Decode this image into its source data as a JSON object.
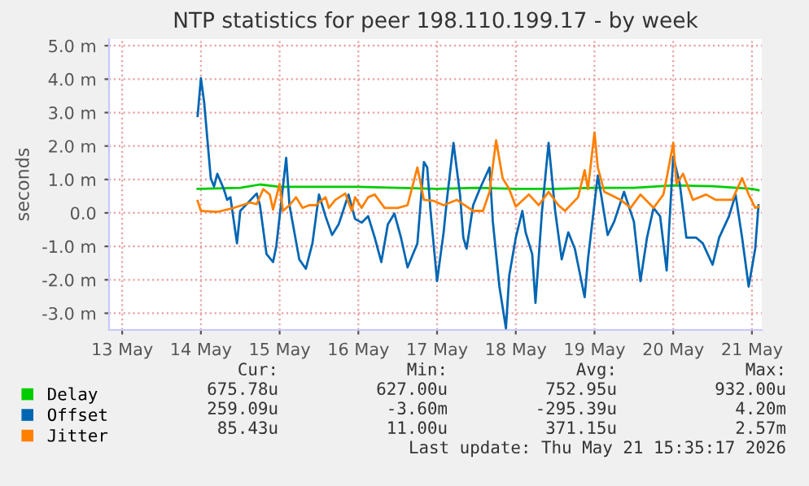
{
  "chart_data": {
    "type": "line",
    "title": "NTP statistics for peer 198.110.199.17 - by week",
    "ylabel": "seconds",
    "xlim": [
      "2026-05-12T20:00",
      "2026-05-21T03:00"
    ],
    "xticks": [
      {
        "value": "2026-05-13",
        "label": "13 May"
      },
      {
        "value": "2026-05-14",
        "label": "14 May"
      },
      {
        "value": "2026-05-15",
        "label": "15 May"
      },
      {
        "value": "2026-05-16",
        "label": "16 May"
      },
      {
        "value": "2026-05-17",
        "label": "17 May"
      },
      {
        "value": "2026-05-18",
        "label": "18 May"
      },
      {
        "value": "2026-05-19",
        "label": "19 May"
      },
      {
        "value": "2026-05-20",
        "label": "20 May"
      },
      {
        "value": "2026-05-21",
        "label": "21 May"
      }
    ],
    "ylim": [
      -3.5,
      5.2
    ],
    "yticks": [
      {
        "value": -3,
        "label": "-3.0 m"
      },
      {
        "value": -2,
        "label": "-2.0 m"
      },
      {
        "value": -1,
        "label": "-1.0 m"
      },
      {
        "value": 0,
        "label": "0.0"
      },
      {
        "value": 1,
        "label": "1.0 m"
      },
      {
        "value": 2,
        "label": "2.0 m"
      },
      {
        "value": 3,
        "label": "3.0 m"
      },
      {
        "value": 4,
        "label": "4.0 m"
      },
      {
        "value": 5,
        "label": "5.0 m"
      }
    ],
    "grid": true,
    "legend": "bottom left",
    "line_style": "solid",
    "marker": "none",
    "series": [
      {
        "name": "Delay",
        "color": "#00cc00",
        "x": [
          "2026-05-13T23:00",
          "2026-05-14T12:00",
          "2026-05-14T18:00",
          "2026-05-15T00:00",
          "2026-05-15T12:00",
          "2026-05-16T00:00",
          "2026-05-16T12:00",
          "2026-05-17T00:00",
          "2026-05-17T12:00",
          "2026-05-18T00:00",
          "2026-05-18T12:00",
          "2026-05-19T00:00",
          "2026-05-19T12:00",
          "2026-05-20T00:00",
          "2026-05-20T12:00",
          "2026-05-21T00:00",
          "2026-05-21T02:00"
        ],
        "values": [
          0.72,
          0.75,
          0.85,
          0.78,
          0.78,
          0.78,
          0.75,
          0.72,
          0.75,
          0.72,
          0.72,
          0.75,
          0.75,
          0.82,
          0.8,
          0.72,
          0.68
        ]
      },
      {
        "name": "Offset",
        "color": "#0066b3",
        "x": [
          "2026-05-13T23:00",
          "2026-05-14T00:00",
          "2026-05-14T01:00",
          "2026-05-14T02:00",
          "2026-05-14T03:00",
          "2026-05-14T04:00",
          "2026-05-14T05:00",
          "2026-05-14T07:00",
          "2026-05-14T08:00",
          "2026-05-14T09:00",
          "2026-05-14T11:00",
          "2026-05-14T12:00",
          "2026-05-14T17:00",
          "2026-05-14T18:00",
          "2026-05-14T20:00",
          "2026-05-14T22:00",
          "2026-05-14T23:00",
          "2026-05-15T02:00",
          "2026-05-15T03:00",
          "2026-05-15T06:00",
          "2026-05-15T08:00",
          "2026-05-15T10:00",
          "2026-05-15T12:00",
          "2026-05-15T14:00",
          "2026-05-15T16:00",
          "2026-05-15T18:00",
          "2026-05-15T21:00",
          "2026-05-15T23:00",
          "2026-05-16T01:00",
          "2026-05-16T03:00",
          "2026-05-16T05:00",
          "2026-05-16T07:00",
          "2026-05-16T09:00",
          "2026-05-16T11:00",
          "2026-05-16T13:00",
          "2026-05-16T15:00",
          "2026-05-16T18:00",
          "2026-05-16T20:00",
          "2026-05-16T21:00",
          "2026-05-16T22:00",
          "2026-05-17T00:00",
          "2026-05-17T02:00",
          "2026-05-17T03:00",
          "2026-05-17T05:00",
          "2026-05-17T07:00",
          "2026-05-17T08:00",
          "2026-05-17T09:00",
          "2026-05-17T11:00",
          "2026-05-17T13:00",
          "2026-05-17T16:00",
          "2026-05-17T17:00",
          "2026-05-17T19:00",
          "2026-05-17T21:00",
          "2026-05-17T22:00",
          "2026-05-18T00:00",
          "2026-05-18T02:00",
          "2026-05-18T03:00",
          "2026-05-18T05:00",
          "2026-05-18T06:00",
          "2026-05-18T08:00",
          "2026-05-18T10:00",
          "2026-05-18T12:00",
          "2026-05-18T14:00",
          "2026-05-18T16:00",
          "2026-05-18T18:00",
          "2026-05-18T21:00",
          "2026-05-18T22:00",
          "2026-05-19T01:00",
          "2026-05-19T02:00",
          "2026-05-19T04:00",
          "2026-05-19T06:00",
          "2026-05-19T09:00",
          "2026-05-19T12:00",
          "2026-05-19T14:00",
          "2026-05-19T16:00",
          "2026-05-19T18:00",
          "2026-05-19T20:00",
          "2026-05-19T22:00",
          "2026-05-20T00:00",
          "2026-05-20T02:00",
          "2026-05-20T04:00",
          "2026-05-20T07:00",
          "2026-05-20T09:00",
          "2026-05-20T12:00",
          "2026-05-20T14:00",
          "2026-05-20T17:00",
          "2026-05-20T19:00",
          "2026-05-20T21:00",
          "2026-05-20T23:00",
          "2026-05-21T01:00",
          "2026-05-21T02:00"
        ],
        "values": [
          2.9,
          4.03,
          3.3,
          2.17,
          1.04,
          0.79,
          1.17,
          0.71,
          0.39,
          0.47,
          -0.91,
          0.06,
          0.58,
          0.23,
          -1.23,
          -1.47,
          -0.99,
          1.65,
          0.23,
          -1.39,
          -1.67,
          -0.91,
          0.55,
          -0.1,
          -0.66,
          -0.34,
          0.55,
          -0.18,
          -0.29,
          -0.1,
          -0.74,
          -1.47,
          -0.34,
          -0.02,
          -0.74,
          -1.63,
          -0.91,
          1.52,
          1.36,
          0.06,
          -2.04,
          -0.58,
          0.39,
          2.09,
          0.55,
          -0.74,
          -1.07,
          0.23,
          0.71,
          1.36,
          -0.26,
          -2.2,
          -3.45,
          -1.88,
          -0.74,
          0.06,
          -0.58,
          -1.23,
          -2.69,
          0.06,
          2.09,
          0.06,
          -1.39,
          -0.58,
          -1.07,
          -2.52,
          -1.39,
          1.12,
          0.55,
          -0.66,
          -0.26,
          0.63,
          -0.26,
          -2.04,
          -0.74,
          0.15,
          -0.1,
          -1.72,
          1.68,
          0.87,
          -0.74,
          -0.74,
          -0.91,
          -1.55,
          -0.74,
          -0.1,
          0.55,
          -0.74,
          -2.2,
          -1.07,
          0.23
        ]
      },
      {
        "name": "Jitter",
        "color": "#ff8000",
        "x": [
          "2026-05-13T23:00",
          "2026-05-14T00:00",
          "2026-05-14T05:00",
          "2026-05-14T10:00",
          "2026-05-14T15:00",
          "2026-05-14T17:00",
          "2026-05-14T19:00",
          "2026-05-14T21:00",
          "2026-05-14T22:00",
          "2026-05-15T00:00",
          "2026-05-15T01:00",
          "2026-05-15T03:00",
          "2026-05-15T05:00",
          "2026-05-15T07:00",
          "2026-05-15T09:00",
          "2026-05-15T11:00",
          "2026-05-15T14:00",
          "2026-05-15T15:00",
          "2026-05-15T17:00",
          "2026-05-15T20:00",
          "2026-05-15T22:00",
          "2026-05-15T23:00",
          "2026-05-16T01:00",
          "2026-05-16T03:00",
          "2026-05-16T05:00",
          "2026-05-16T08:00",
          "2026-05-16T12:00",
          "2026-05-16T15:00",
          "2026-05-16T18:00",
          "2026-05-16T20:00",
          "2026-05-16T23:00",
          "2026-05-17T02:00",
          "2026-05-17T06:00",
          "2026-05-17T11:00",
          "2026-05-17T14:00",
          "2026-05-17T16:00",
          "2026-05-17T18:00",
          "2026-05-17T20:00",
          "2026-05-17T22:00",
          "2026-05-18T00:00",
          "2026-05-18T04:00",
          "2026-05-18T07:00",
          "2026-05-18T10:00",
          "2026-05-18T13:00",
          "2026-05-18T15:00",
          "2026-05-18T19:00",
          "2026-05-18T21:00",
          "2026-05-18T22:00",
          "2026-05-19T00:00",
          "2026-05-19T01:00",
          "2026-05-19T03:00",
          "2026-05-19T08:00",
          "2026-05-19T11:00",
          "2026-05-19T14:00",
          "2026-05-19T18:00",
          "2026-05-19T21:00",
          "2026-05-19T22:00",
          "2026-05-20T00:00",
          "2026-05-20T01:00",
          "2026-05-20T03:00",
          "2026-05-20T06:00",
          "2026-05-20T10:00",
          "2026-05-20T13:00",
          "2026-05-20T18:00",
          "2026-05-20T21:00",
          "2026-05-20T23:00",
          "2026-05-21T01:00",
          "2026-05-21T02:00"
        ],
        "values": [
          0.36,
          0.06,
          0.03,
          0.15,
          0.31,
          0.26,
          0.71,
          0.55,
          0.1,
          0.87,
          0.06,
          0.23,
          0.47,
          0.15,
          0.23,
          0.23,
          0.47,
          0.15,
          0.39,
          0.58,
          0.06,
          0.47,
          0.15,
          0.47,
          0.55,
          0.15,
          0.15,
          0.23,
          1.36,
          0.39,
          0.36,
          0.23,
          0.39,
          0.06,
          0.06,
          0.63,
          2.17,
          1.04,
          0.71,
          0.19,
          0.55,
          0.23,
          0.63,
          0.23,
          0.06,
          0.47,
          1.28,
          0.71,
          2.41,
          1.36,
          0.63,
          0.39,
          0.15,
          0.55,
          0.15,
          0.55,
          1.04,
          2.09,
          0.87,
          1.17,
          0.39,
          0.55,
          0.39,
          0.39,
          1.04,
          0.55,
          0.15,
          0.19
        ]
      }
    ],
    "annotations": [
      "Cur:",
      "Min:",
      "Avg:",
      "Max:",
      "675.78u",
      "627.00u",
      "752.95u",
      "932.00u",
      "259.09u",
      "-3.60m",
      "-295.39u",
      "4.20m",
      "85.43u",
      "11.00u",
      "371.15u",
      "2.57m",
      "Last update: Thu May 21 15:35:17 2026"
    ]
  }
}
